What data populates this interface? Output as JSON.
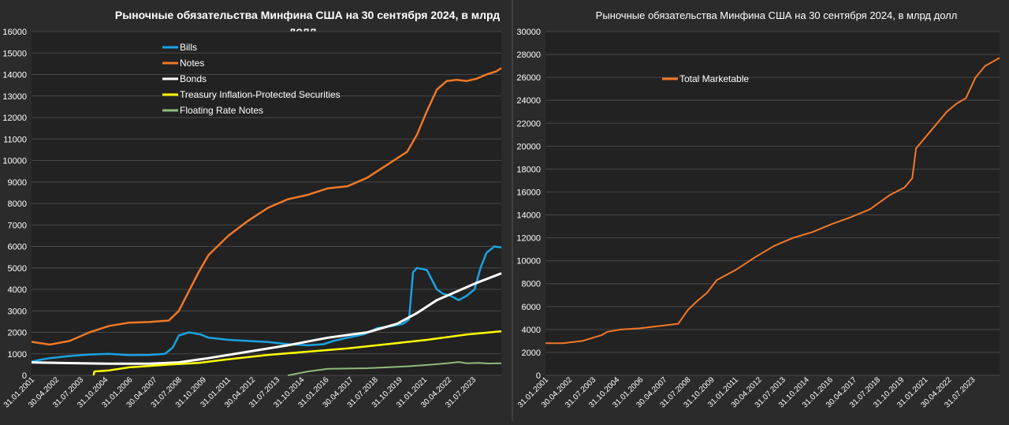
{
  "chart_data": [
    {
      "type": "line",
      "title_line1": "Рыночные обязательства Минфина США на 30  сентября 2024, в млрд",
      "title_line2": "долл",
      "ylim": [
        0,
        16000
      ],
      "yticks": [
        "0",
        "1000",
        "2000",
        "3000",
        "4000",
        "5000",
        "6000",
        "7000",
        "8000",
        "9000",
        "10000",
        "11000",
        "12000",
        "13000",
        "14000",
        "15000",
        "16000"
      ],
      "xlim": [
        2001.08,
        2024.75
      ],
      "xticks": [
        "31.01.2001",
        "30.04.2002",
        "31.07.2003",
        "31.10.2004",
        "31.01.2006",
        "30.04.2007",
        "31.07.2008",
        "31.10.2009",
        "31.01.2011",
        "30.04.2012",
        "31.07.2013",
        "31.10.2014",
        "31.01.2016",
        "30.04.2017",
        "31.07.2018",
        "31.10.2019",
        "31.01.2021",
        "30.04.2022",
        "31.07.2023"
      ],
      "legend_position": "top-center",
      "series": [
        {
          "name": "Bills",
          "color": "#1aa3e0",
          "width": 2.5,
          "points": [
            [
              2001.08,
              640
            ],
            [
              2001.5,
              720
            ],
            [
              2002,
              800
            ],
            [
              2003,
              900
            ],
            [
              2004,
              970
            ],
            [
              2005,
              1000
            ],
            [
              2006,
              940
            ],
            [
              2007,
              950
            ],
            [
              2007.8,
              1000
            ],
            [
              2008.2,
              1300
            ],
            [
              2008.5,
              1850
            ],
            [
              2009,
              2000
            ],
            [
              2009.6,
              1900
            ],
            [
              2010,
              1750
            ],
            [
              2011,
              1650
            ],
            [
              2012,
              1600
            ],
            [
              2013,
              1550
            ],
            [
              2014,
              1450
            ],
            [
              2015,
              1400
            ],
            [
              2015.8,
              1450
            ],
            [
              2016.3,
              1600
            ],
            [
              2017,
              1750
            ],
            [
              2017.8,
              1900
            ],
            [
              2018.5,
              2200
            ],
            [
              2019.3,
              2300
            ],
            [
              2019.8,
              2400
            ],
            [
              2020.1,
              2600
            ],
            [
              2020.3,
              4800
            ],
            [
              2020.5,
              5000
            ],
            [
              2021,
              4900
            ],
            [
              2021.5,
              4000
            ],
            [
              2021.8,
              3800
            ],
            [
              2022.2,
              3700
            ],
            [
              2022.6,
              3500
            ],
            [
              2023,
              3700
            ],
            [
              2023.4,
              4000
            ],
            [
              2023.7,
              5000
            ],
            [
              2024,
              5700
            ],
            [
              2024.4,
              6000
            ],
            [
              2024.75,
              5950
            ]
          ]
        },
        {
          "name": "Notes",
          "color": "#f07828",
          "width": 2.5,
          "points": [
            [
              2001.08,
              1560
            ],
            [
              2001.5,
              1500
            ],
            [
              2002,
              1430
            ],
            [
              2003,
              1600
            ],
            [
              2004,
              2000
            ],
            [
              2005,
              2300
            ],
            [
              2006,
              2450
            ],
            [
              2007,
              2480
            ],
            [
              2008,
              2550
            ],
            [
              2008.5,
              3000
            ],
            [
              2009,
              3900
            ],
            [
              2009.5,
              4800
            ],
            [
              2010,
              5600
            ],
            [
              2011,
              6500
            ],
            [
              2012,
              7200
            ],
            [
              2013,
              7800
            ],
            [
              2014,
              8200
            ],
            [
              2015,
              8400
            ],
            [
              2016,
              8700
            ],
            [
              2017,
              8800
            ],
            [
              2018,
              9200
            ],
            [
              2019,
              9800
            ],
            [
              2020,
              10400
            ],
            [
              2020.5,
              11200
            ],
            [
              2021,
              12300
            ],
            [
              2021.5,
              13300
            ],
            [
              2022,
              13700
            ],
            [
              2022.5,
              13750
            ],
            [
              2023,
              13700
            ],
            [
              2023.5,
              13800
            ],
            [
              2024,
              14000
            ],
            [
              2024.5,
              14150
            ],
            [
              2024.75,
              14300
            ]
          ]
        },
        {
          "name": "Bonds",
          "color": "#ffffff",
          "width": 3,
          "points": [
            [
              2001.08,
              600
            ],
            [
              2003,
              570
            ],
            [
              2005,
              540
            ],
            [
              2007,
              540
            ],
            [
              2008.5,
              600
            ],
            [
              2010,
              800
            ],
            [
              2012,
              1100
            ],
            [
              2014,
              1400
            ],
            [
              2016,
              1750
            ],
            [
              2018,
              2000
            ],
            [
              2019.5,
              2400
            ],
            [
              2020.5,
              2900
            ],
            [
              2021.5,
              3500
            ],
            [
              2022.5,
              3900
            ],
            [
              2023.5,
              4300
            ],
            [
              2024.75,
              4750
            ]
          ]
        },
        {
          "name": "Treasury Inflation-Protected Securities",
          "color": "#ffff00",
          "width": 2.5,
          "points": [
            [
              2004.2,
              0
            ],
            [
              2004.25,
              180
            ],
            [
              2005,
              230
            ],
            [
              2006,
              370
            ],
            [
              2008,
              500
            ],
            [
              2009.5,
              580
            ],
            [
              2011,
              750
            ],
            [
              2013,
              950
            ],
            [
              2015,
              1100
            ],
            [
              2017,
              1250
            ],
            [
              2019,
              1450
            ],
            [
              2021,
              1650
            ],
            [
              2023,
              1900
            ],
            [
              2024.75,
              2050
            ]
          ]
        },
        {
          "name": "Floating Rate Notes",
          "color": "#8fbb7a",
          "width": 2,
          "points": [
            [
              2014,
              0
            ],
            [
              2014.3,
              50
            ],
            [
              2015,
              180
            ],
            [
              2016,
              300
            ],
            [
              2018,
              330
            ],
            [
              2020,
              420
            ],
            [
              2021,
              480
            ],
            [
              2022,
              560
            ],
            [
              2022.6,
              620
            ],
            [
              2023,
              560
            ],
            [
              2023.6,
              580
            ],
            [
              2024.1,
              550
            ],
            [
              2024.75,
              560
            ]
          ]
        }
      ]
    },
    {
      "type": "line",
      "title": "Рыночные обязательства Минфина США на 30 сентября 2024, в млрд долл",
      "ylim": [
        0,
        30000
      ],
      "yticks": [
        "0",
        "2000",
        "4000",
        "6000",
        "8000",
        "10000",
        "12000",
        "14000",
        "16000",
        "18000",
        "20000",
        "22000",
        "24000",
        "26000",
        "28000",
        "30000"
      ],
      "xlim": [
        2001.08,
        2024.75
      ],
      "xticks": [
        "31.01.2001",
        "30.04.2002",
        "31.07.2003",
        "31.10.2004",
        "31.01.2006",
        "30.04.2007",
        "31.07.2008",
        "31.10.2009",
        "31.01.2011",
        "30.04.2012",
        "31.07.2013",
        "31.10.2014",
        "31.01.2016",
        "30.04.2017",
        "31.07.2018",
        "31.10.2019",
        "31.01.2021",
        "30.04.2022",
        "31.07.2023"
      ],
      "legend_position": "top-left",
      "series": [
        {
          "name": "Total Marketable",
          "color": "#f07828",
          "width": 2,
          "points": [
            [
              2001.08,
              2800
            ],
            [
              2002,
              2800
            ],
            [
              2003,
              3000
            ],
            [
              2004,
              3500
            ],
            [
              2004.3,
              3800
            ],
            [
              2005,
              4000
            ],
            [
              2006,
              4100
            ],
            [
              2007,
              4300
            ],
            [
              2008,
              4500
            ],
            [
              2008.5,
              5700
            ],
            [
              2009,
              6500
            ],
            [
              2009.5,
              7200
            ],
            [
              2010,
              8300
            ],
            [
              2011,
              9200
            ],
            [
              2012,
              10300
            ],
            [
              2013,
              11300
            ],
            [
              2014,
              12000
            ],
            [
              2015,
              12500
            ],
            [
              2016,
              13200
            ],
            [
              2017,
              13800
            ],
            [
              2018,
              14500
            ],
            [
              2019,
              15700
            ],
            [
              2019.8,
              16400
            ],
            [
              2020.2,
              17200
            ],
            [
              2020.4,
              19800
            ],
            [
              2021,
              21000
            ],
            [
              2021.5,
              22000
            ],
            [
              2022,
              23000
            ],
            [
              2022.5,
              23700
            ],
            [
              2023,
              24200
            ],
            [
              2023.5,
              26000
            ],
            [
              2024,
              27000
            ],
            [
              2024.75,
              27700
            ]
          ]
        }
      ]
    }
  ]
}
